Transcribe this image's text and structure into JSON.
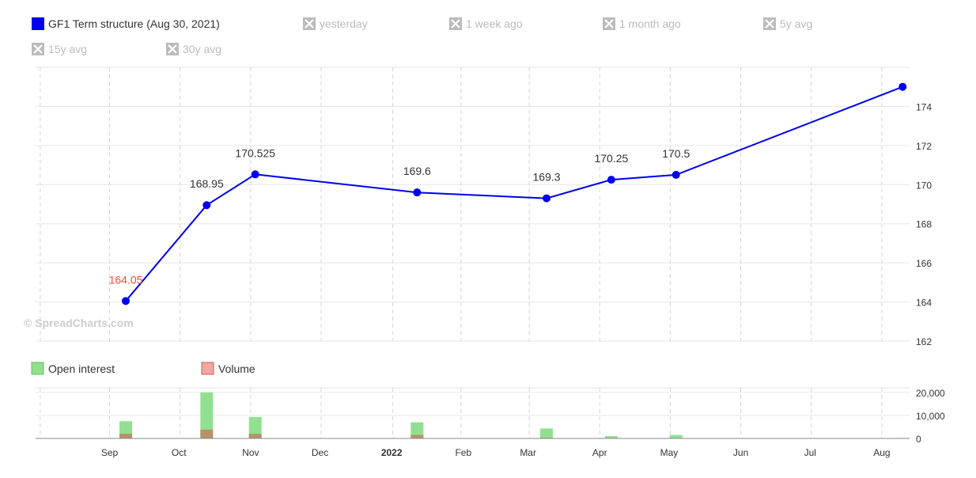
{
  "colors": {
    "series_line": "#0000ee",
    "min_label": "#e8513a",
    "legend_disabled": "#bbbbbb",
    "grid": "#e6e6e6",
    "open_interest": "#90e090",
    "volume": "#b8906a",
    "volume_legend": "#f0a8a0",
    "watermark": "#cccccc"
  },
  "watermark": "© SpreadCharts.com",
  "legend": {
    "items": [
      {
        "label": "GF1 Term structure (Aug 30, 2021)",
        "enabled": true
      },
      {
        "label": "yesterday",
        "enabled": false
      },
      {
        "label": "1 week ago",
        "enabled": false
      },
      {
        "label": "1 month ago",
        "enabled": false
      },
      {
        "label": "5y avg",
        "enabled": false
      },
      {
        "label": "15y avg",
        "enabled": false
      },
      {
        "label": "30y avg",
        "enabled": false
      }
    ]
  },
  "volume_legend": {
    "open_interest_label": "Open interest",
    "volume_label": "Volume"
  },
  "chart_data": [
    {
      "type": "line",
      "series": [
        {
          "name": "GF1 Term structure (Aug 30, 2021)",
          "points": [
            {
              "x": "2021-09-23",
              "y": 164.05,
              "label": "164.05",
              "highlight": true
            },
            {
              "x": "2021-10-28",
              "y": 168.95,
              "label": "168.95"
            },
            {
              "x": "2021-11-18",
              "y": 170.525,
              "label": "170.525"
            },
            {
              "x": "2022-01-27",
              "y": 169.6,
              "label": "169.6"
            },
            {
              "x": "2022-03-24",
              "y": 169.3,
              "label": "169.3"
            },
            {
              "x": "2022-04-21",
              "y": 170.25,
              "label": "170.25"
            },
            {
              "x": "2022-05-19",
              "y": 170.5,
              "label": "170.5"
            },
            {
              "x": "2022-08-25",
              "y": 175.0
            }
          ]
        }
      ],
      "ylim": [
        162,
        176
      ],
      "y_ticks": [
        "162",
        "164",
        "166",
        "168",
        "170",
        "172",
        "174"
      ],
      "x_ticks": [
        {
          "date": "2021-09-01",
          "label": "Sep"
        },
        {
          "date": "2021-10-01",
          "label": "Oct"
        },
        {
          "date": "2021-11-01",
          "label": "Nov"
        },
        {
          "date": "2021-12-01",
          "label": "Dec"
        },
        {
          "date": "2022-01-01",
          "label": "2022",
          "bold": true
        },
        {
          "date": "2022-02-01",
          "label": "Feb"
        },
        {
          "date": "2022-03-01",
          "label": "Mar"
        },
        {
          "date": "2022-04-01",
          "label": "Apr"
        },
        {
          "date": "2022-05-01",
          "label": "May"
        },
        {
          "date": "2022-06-01",
          "label": "Jun"
        },
        {
          "date": "2022-07-01",
          "label": "Jul"
        },
        {
          "date": "2022-08-01",
          "label": "Aug"
        }
      ],
      "grid": true
    },
    {
      "type": "bar",
      "stacked_overlay": true,
      "x": [
        "2021-09-23",
        "2021-10-28",
        "2021-11-18",
        "2022-01-27",
        "2022-03-24",
        "2022-04-21",
        "2022-05-19",
        "2022-08-25"
      ],
      "series": [
        {
          "name": "Open interest",
          "values": [
            7500,
            20000,
            9300,
            7000,
            4300,
            1000,
            1500,
            200
          ]
        },
        {
          "name": "Volume",
          "values": [
            2000,
            3800,
            2000,
            1500,
            300,
            100,
            100,
            0
          ]
        }
      ],
      "ylim": [
        0,
        22000
      ],
      "y_ticks": [
        "0",
        "10,000",
        "20,000"
      ]
    }
  ]
}
